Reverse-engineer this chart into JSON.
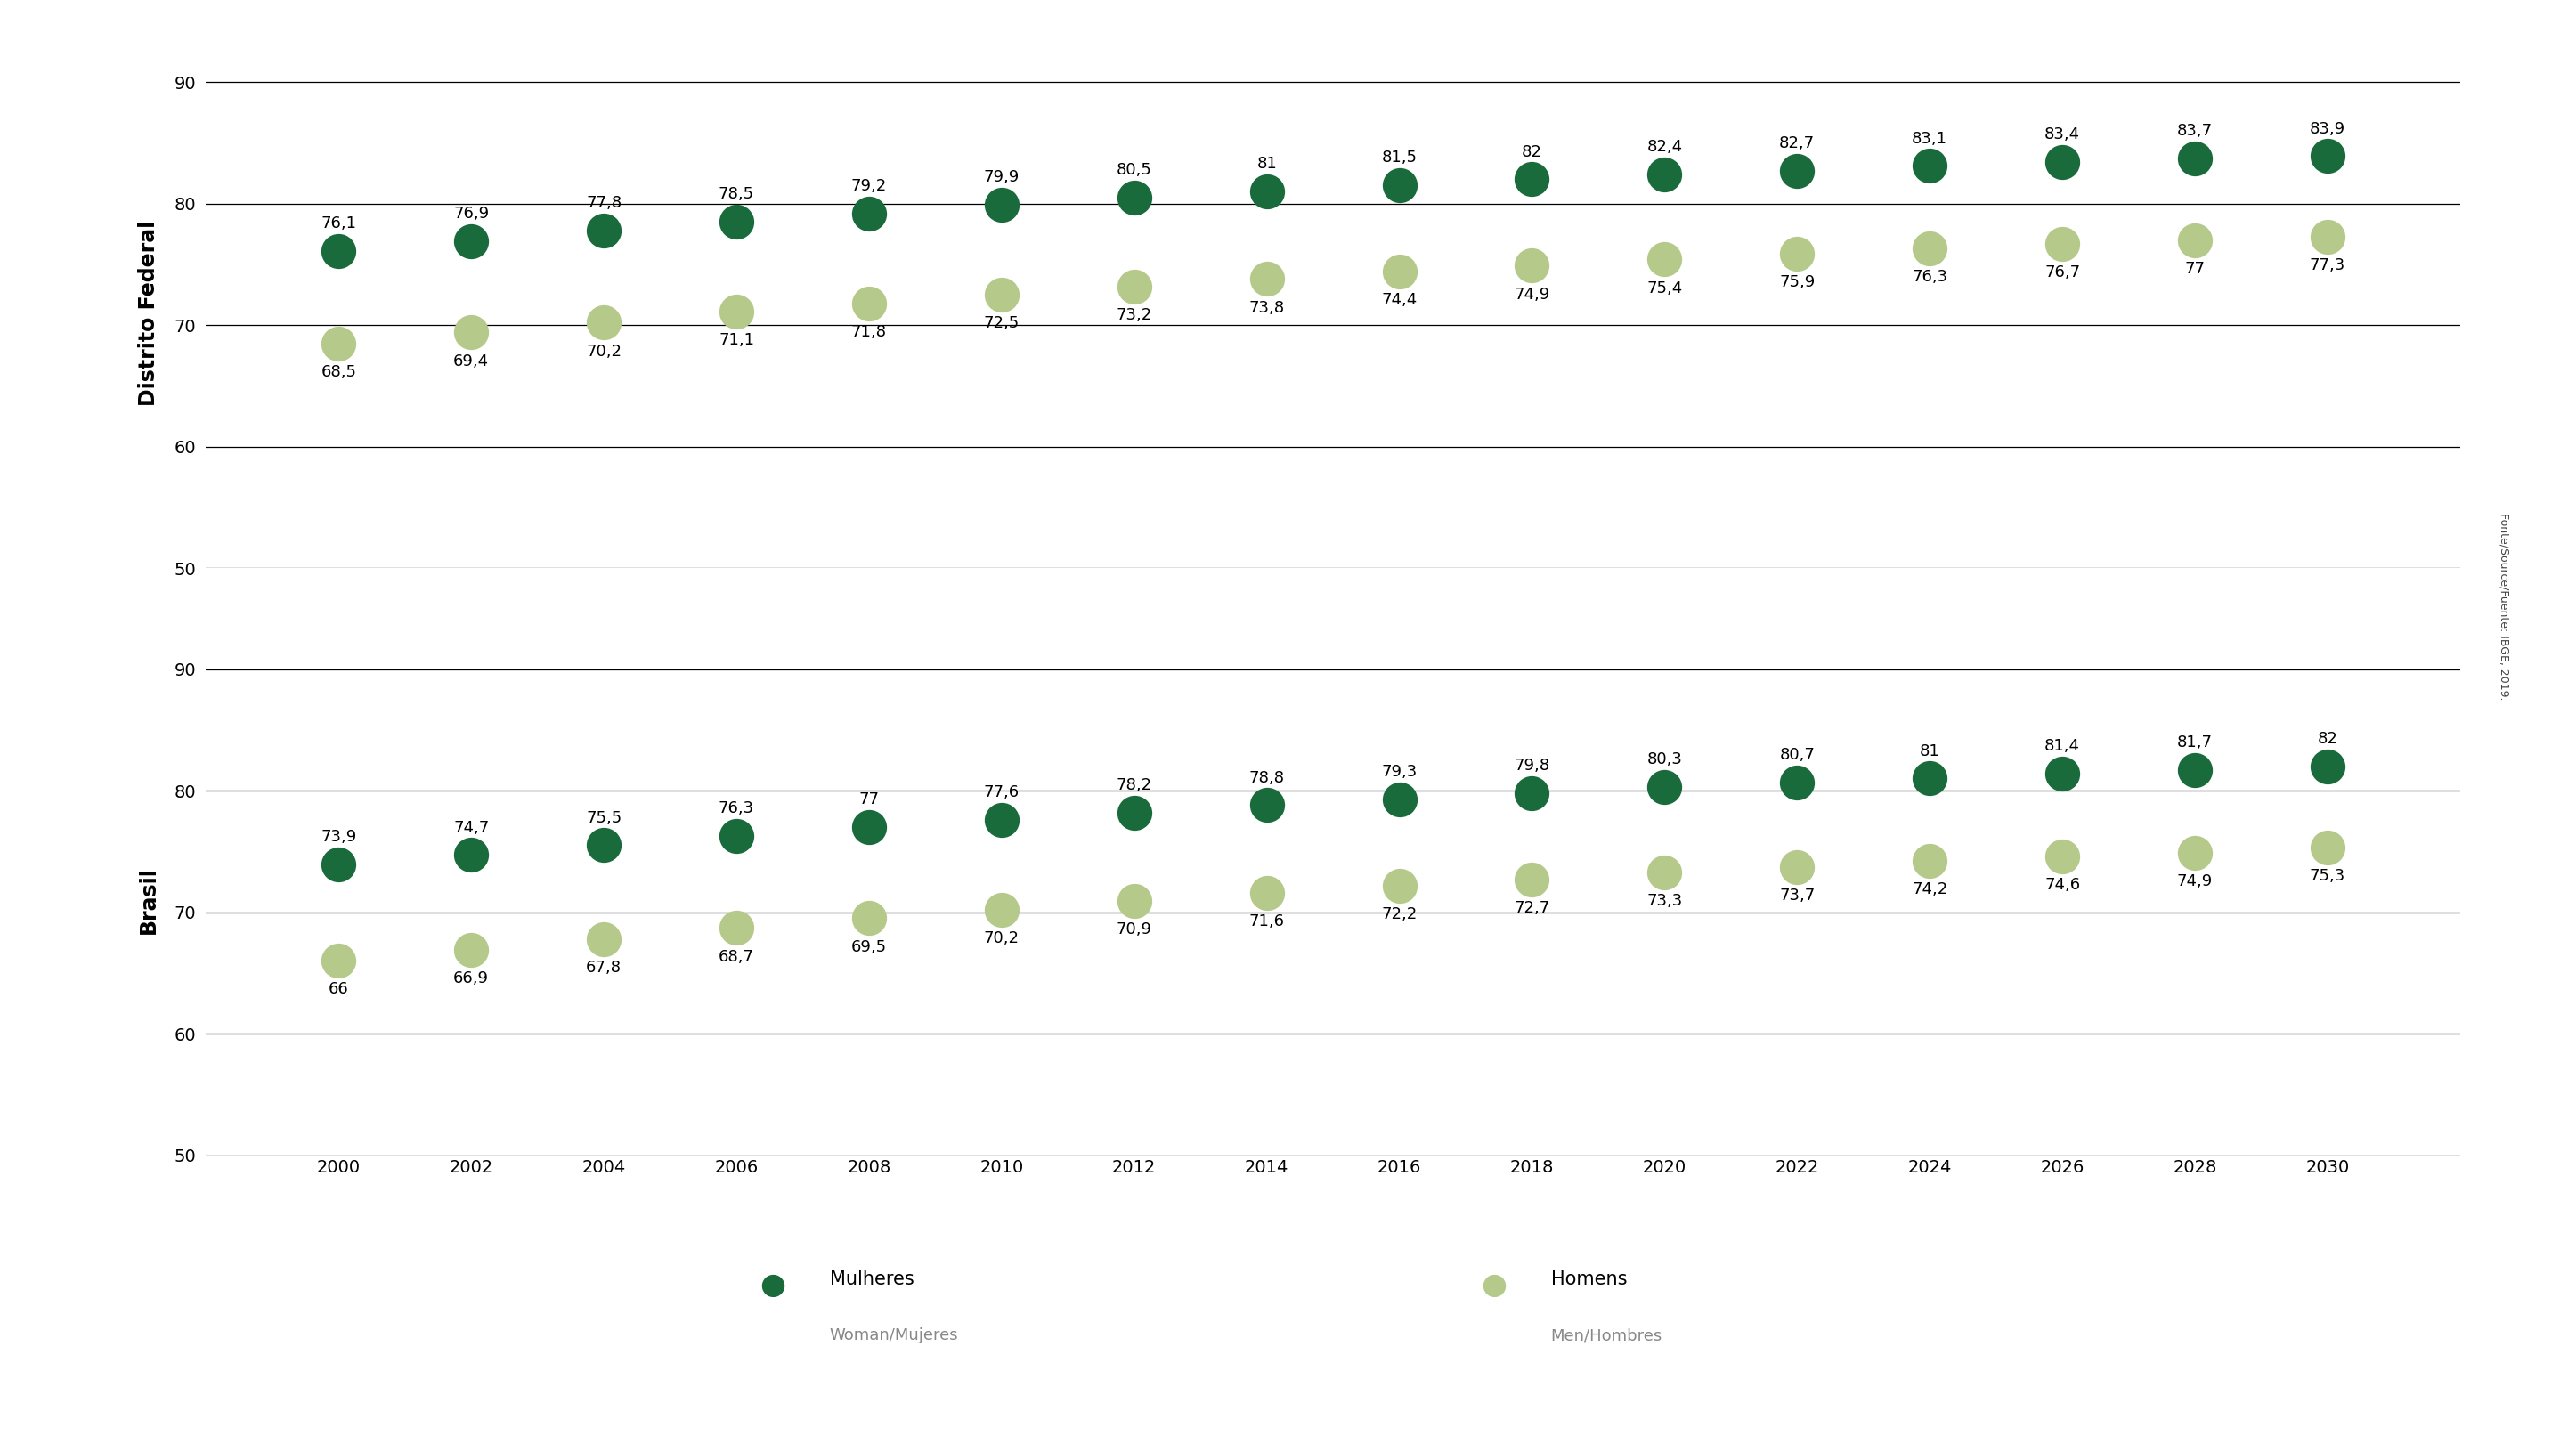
{
  "years": [
    2000,
    2002,
    2004,
    2006,
    2008,
    2010,
    2012,
    2014,
    2016,
    2018,
    2020,
    2022,
    2024,
    2026,
    2028,
    2030
  ],
  "df_women": [
    76.1,
    76.9,
    77.8,
    78.5,
    79.2,
    79.9,
    80.5,
    81.0,
    81.5,
    82.0,
    82.4,
    82.7,
    83.1,
    83.4,
    83.7,
    83.9
  ],
  "df_men": [
    68.5,
    69.4,
    70.2,
    71.1,
    71.8,
    72.5,
    73.2,
    73.8,
    74.4,
    74.9,
    75.4,
    75.9,
    76.3,
    76.7,
    77.0,
    77.3
  ],
  "br_women": [
    73.9,
    74.7,
    75.5,
    76.3,
    77.0,
    77.6,
    78.2,
    78.8,
    79.3,
    79.8,
    80.3,
    80.7,
    81.0,
    81.4,
    81.7,
    82.0
  ],
  "br_men": [
    66.0,
    66.9,
    67.8,
    68.7,
    69.5,
    70.2,
    70.9,
    71.6,
    72.2,
    72.7,
    73.3,
    73.7,
    74.2,
    74.6,
    74.9,
    75.3
  ],
  "df_women_labels": [
    "76,1",
    "76,9",
    "77,8",
    "78,5",
    "79,2",
    "79,9",
    "80,5",
    "81",
    "81,5",
    "82",
    "82,4",
    "82,7",
    "83,1",
    "83,4",
    "83,7",
    "83,9"
  ],
  "df_men_labels": [
    "68,5",
    "69,4",
    "70,2",
    "71,1",
    "71,8",
    "72,5",
    "73,2",
    "73,8",
    "74,4",
    "74,9",
    "75,4",
    "75,9",
    "76,3",
    "76,7",
    "77",
    "77,3"
  ],
  "br_women_labels": [
    "73,9",
    "74,7",
    "75,5",
    "76,3",
    "77",
    "77,6",
    "78,2",
    "78,8",
    "79,3",
    "79,8",
    "80,3",
    "80,7",
    "81",
    "81,4",
    "81,7",
    "82"
  ],
  "br_men_labels": [
    "66",
    "66,9",
    "67,8",
    "68,7",
    "69,5",
    "70,2",
    "70,9",
    "71,6",
    "72,2",
    "72,7",
    "73,3",
    "73,7",
    "74,2",
    "74,6",
    "74,9",
    "75,3"
  ],
  "color_women": "#1a6b3c",
  "color_men": "#b5c98a",
  "ylim": [
    50,
    92
  ],
  "yticks": [
    50,
    60,
    70,
    80,
    90
  ],
  "ylabel_df": "Distrito Federal",
  "ylabel_br": "Brasil",
  "legend_women": "Mulheres",
  "legend_women_sub": "Woman/Mujeres",
  "legend_men": "Homens",
  "legend_men_sub": "Men/Hombres",
  "source_text": "Fonte/Source/Fuente: IBGE, 2019.",
  "marker_size": 800,
  "label_fontsize": 13,
  "tick_fontsize": 14,
  "ylabel_fontsize": 17,
  "legend_fontsize": 15,
  "legend_sub_fontsize": 13
}
